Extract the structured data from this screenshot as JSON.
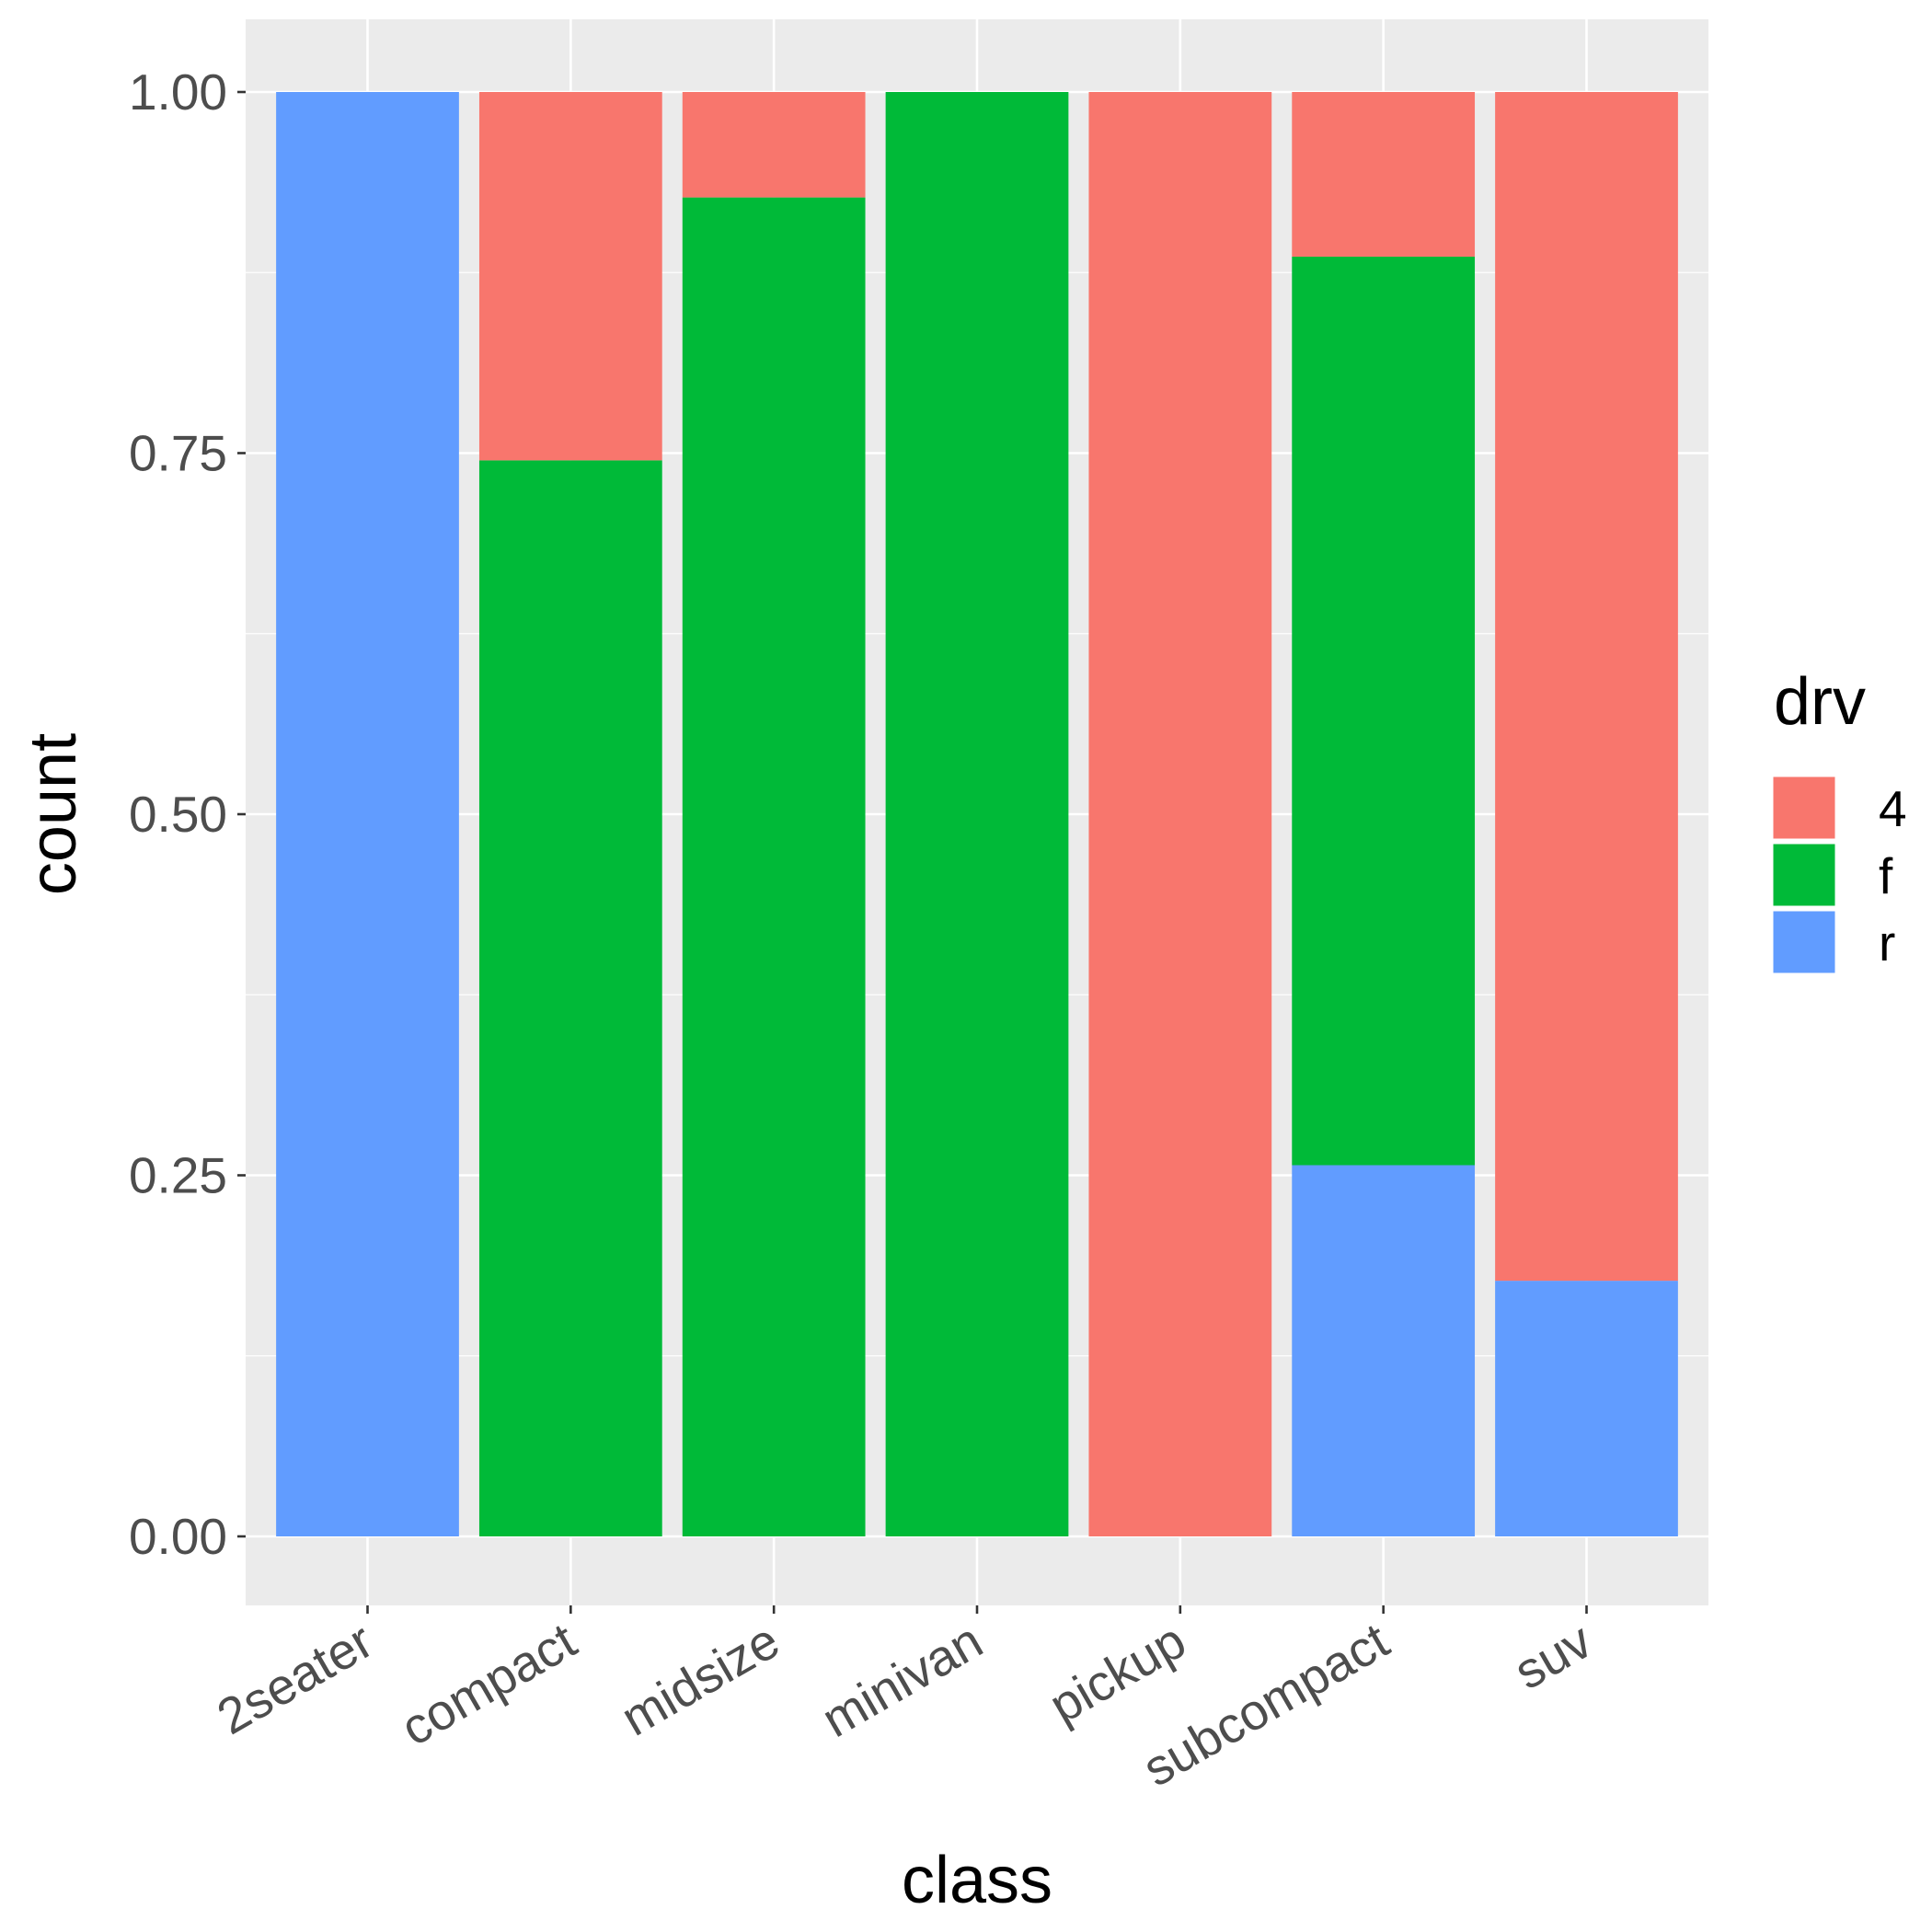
{
  "chart_data": {
    "type": "bar",
    "stacked": true,
    "position": "fill",
    "categories": [
      "2seater",
      "compact",
      "midsize",
      "minivan",
      "pickup",
      "subcompact",
      "suv"
    ],
    "stack_order_bottom_to_top": [
      "r",
      "f",
      "4"
    ],
    "series": [
      {
        "name": "4",
        "color": "#F8766D",
        "values": [
          0.0,
          0.255,
          0.073,
          0.0,
          1.0,
          0.114,
          0.823
        ]
      },
      {
        "name": "f",
        "color": "#00BA38",
        "values": [
          0.0,
          0.745,
          0.927,
          1.0,
          0.0,
          0.629,
          0.0
        ]
      },
      {
        "name": "r",
        "color": "#619CFF",
        "values": [
          1.0,
          0.0,
          0.0,
          0.0,
          0.0,
          0.257,
          0.177
        ]
      }
    ],
    "xlabel": "class",
    "ylabel": "count",
    "ylim": [
      0,
      1
    ],
    "yticks": [
      "0.00",
      "0.25",
      "0.50",
      "0.75",
      "1.00"
    ],
    "ytick_values": [
      0,
      0.25,
      0.5,
      0.75,
      1.0
    ],
    "grid": true,
    "panel_background": "#EBEBEB",
    "legend": {
      "title": "drv",
      "position": "right",
      "entries": [
        "4",
        "f",
        "r"
      ]
    }
  }
}
